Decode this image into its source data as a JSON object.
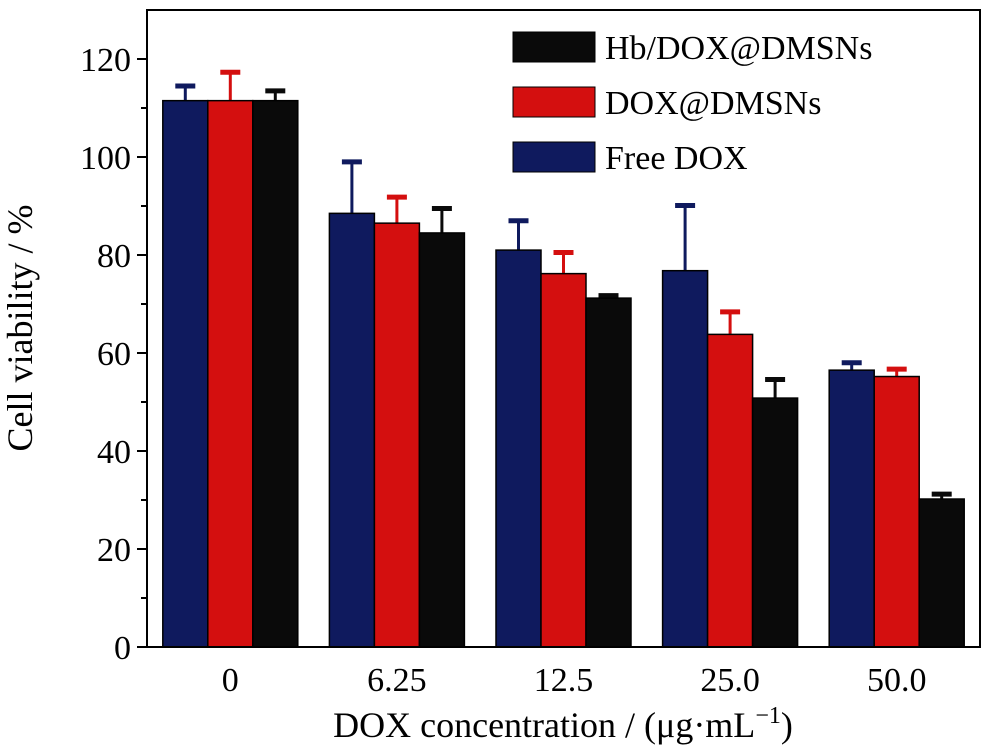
{
  "chart_data": {
    "type": "bar",
    "xlabel": "DOX concentration / (μg·mL",
    "xlabel_sup": "−1",
    "xlabel_close": ")",
    "ylabel": "Cell viability / %",
    "categories": [
      "0",
      "6.25",
      "12.5",
      "25.0",
      "50.0"
    ],
    "ylim": [
      0,
      130
    ],
    "yticks": [
      0,
      20,
      40,
      60,
      80,
      100,
      120
    ],
    "series": [
      {
        "name": "Free DOX",
        "color": "#0f1a5e",
        "values": [
          111.5,
          88.5,
          81.0,
          76.8,
          56.5
        ],
        "errors": [
          3.0,
          10.5,
          6.0,
          13.3,
          1.5
        ]
      },
      {
        "name": "DOX@DMSNs",
        "color": "#d40f0f",
        "values": [
          111.5,
          86.5,
          76.2,
          63.8,
          55.2
        ],
        "errors": [
          5.8,
          5.3,
          4.3,
          4.6,
          1.5
        ]
      },
      {
        "name": "Hb/DOX@DMSNs",
        "color": "#0a0a0a",
        "values": [
          111.5,
          84.5,
          71.2,
          50.8,
          30.2
        ],
        "errors": [
          2.0,
          5.0,
          0.5,
          3.8,
          1.0
        ]
      }
    ],
    "legend_order": [
      "Hb/DOX@DMSNs",
      "DOX@DMSNs",
      "Free DOX"
    ],
    "legend_position": "top-right"
  }
}
